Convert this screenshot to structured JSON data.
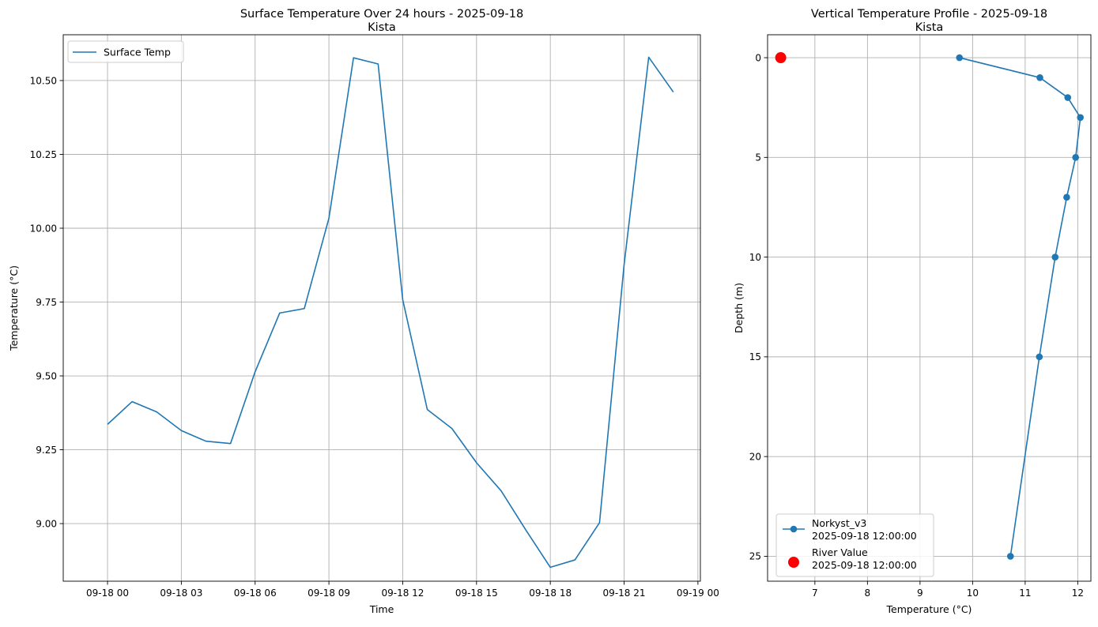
{
  "chart_data": [
    {
      "type": "line",
      "title": "Surface Temperature Over 24 hours - 2025-09-18",
      "subtitle": "Kista",
      "xlabel": "Time",
      "ylabel": "Temperature (°C)",
      "x_unit": "hours since 09-18 00",
      "xlim": [
        -1.8,
        24.1
      ],
      "ylim": [
        8.805,
        10.655
      ],
      "x_ticks": [
        {
          "value": 0,
          "label": "09-18 00"
        },
        {
          "value": 3,
          "label": "09-18 03"
        },
        {
          "value": 6,
          "label": "09-18 06"
        },
        {
          "value": 9,
          "label": "09-18 09"
        },
        {
          "value": 12,
          "label": "09-18 12"
        },
        {
          "value": 15,
          "label": "09-18 15"
        },
        {
          "value": 18,
          "label": "09-18 18"
        },
        {
          "value": 21,
          "label": "09-18 21"
        },
        {
          "value": 24,
          "label": "09-19 00"
        }
      ],
      "y_ticks": [
        {
          "value": 9.0,
          "label": "9.00"
        },
        {
          "value": 9.25,
          "label": "9.25"
        },
        {
          "value": 9.5,
          "label": "9.50"
        },
        {
          "value": 9.75,
          "label": "9.75"
        },
        {
          "value": 10.0,
          "label": "10.00"
        },
        {
          "value": 10.25,
          "label": "10.25"
        },
        {
          "value": 10.5,
          "label": "10.50"
        }
      ],
      "grid": true,
      "legend_position": "upper-left",
      "series": [
        {
          "name": "Surface Temp",
          "color": "#1f77b4",
          "marker": "none",
          "x": [
            0,
            1,
            2,
            3,
            4,
            5,
            6,
            7,
            8,
            9,
            10,
            11,
            12,
            13,
            14,
            15,
            16,
            17,
            18,
            19,
            20,
            21,
            22,
            23
          ],
          "y": [
            9.336,
            9.413,
            9.378,
            9.315,
            9.279,
            9.271,
            9.514,
            9.713,
            9.728,
            10.034,
            10.577,
            10.556,
            9.758,
            9.386,
            9.322,
            9.206,
            9.111,
            8.979,
            8.852,
            8.877,
            9.003,
            9.877,
            10.579,
            10.461
          ]
        }
      ]
    },
    {
      "type": "line",
      "title": "Vertical Temperature Profile - 2025-09-18",
      "subtitle": "Kista",
      "xlabel": "Temperature (°C)",
      "ylabel": "Depth (m)",
      "y_inverted": true,
      "xlim": [
        6.1,
        12.25
      ],
      "ylim": [
        26.25,
        -1.15
      ],
      "x_ticks": [
        {
          "value": 7,
          "label": "7"
        },
        {
          "value": 8,
          "label": "8"
        },
        {
          "value": 9,
          "label": "9"
        },
        {
          "value": 10,
          "label": "10"
        },
        {
          "value": 11,
          "label": "11"
        },
        {
          "value": 12,
          "label": "12"
        }
      ],
      "y_ticks": [
        {
          "value": 0,
          "label": "0"
        },
        {
          "value": 5,
          "label": "5"
        },
        {
          "value": 10,
          "label": "10"
        },
        {
          "value": 15,
          "label": "15"
        },
        {
          "value": 20,
          "label": "20"
        },
        {
          "value": 25,
          "label": "25"
        }
      ],
      "grid": true,
      "legend_position": "lower-left",
      "series": [
        {
          "name": "Norkyst_v3",
          "name_line2": "2025-09-18 12:00:00",
          "color": "#1f77b4",
          "marker": "circle",
          "x": [
            9.75,
            11.28,
            11.81,
            12.05,
            11.96,
            11.79,
            11.57,
            11.27,
            10.72
          ],
          "y": [
            0,
            1,
            2,
            3,
            5,
            7,
            10,
            15,
            25
          ]
        },
        {
          "name": "River Value",
          "name_line2": "2025-09-18 12:00:00",
          "color": "#ff0000",
          "marker": "large-circle",
          "x": [
            6.35
          ],
          "y": [
            0
          ]
        }
      ]
    }
  ]
}
